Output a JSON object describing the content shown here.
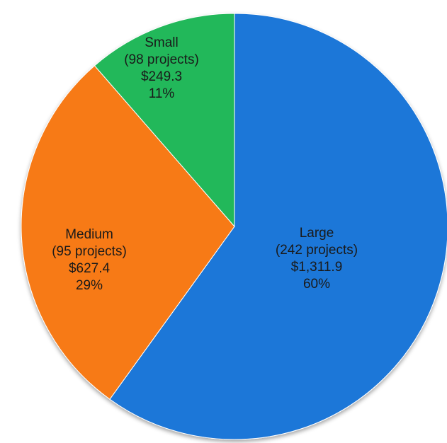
{
  "chart_data": {
    "type": "pie",
    "title": "",
    "start": "12 o'clock",
    "direction": "clockwise",
    "slices": [
      {
        "name": "Large",
        "projects_label": "(242 projects)",
        "amount_label": "$1,311.9",
        "percent_label": "60%",
        "value": 1311.9,
        "color": "#1f77d8"
      },
      {
        "name": "Medium",
        "projects_label": "(95 projects)",
        "amount_label": "$627.4",
        "percent_label": "29%",
        "value": 627.4,
        "color": "#f77a12"
      },
      {
        "name": "Small",
        "projects_label": "(98 projects)",
        "amount_label": "$249.3",
        "percent_label": "11%",
        "value": 249.3,
        "color": "#22b85a"
      }
    ]
  }
}
